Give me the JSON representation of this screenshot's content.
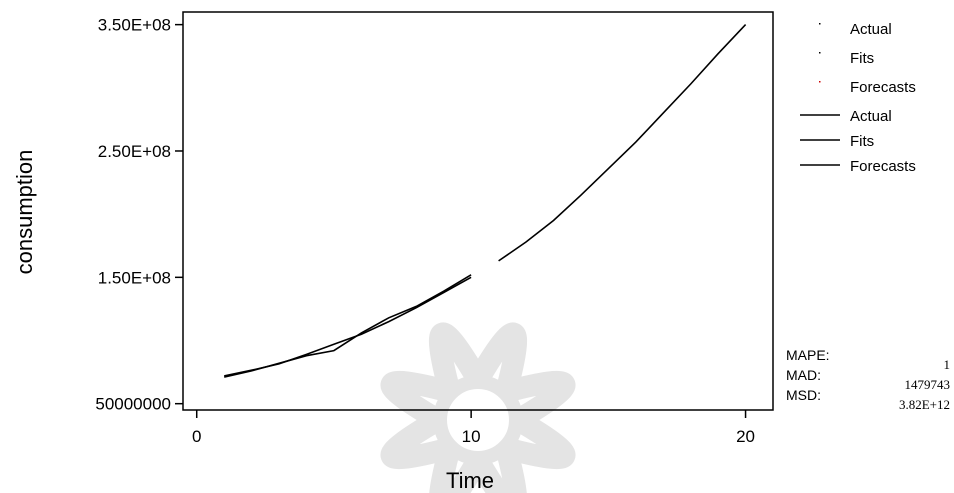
{
  "chart_data": {
    "type": "line",
    "xlabel": "Time",
    "ylabel": "consumption",
    "xlim": [
      -0.5,
      21
    ],
    "ylim": [
      45000000,
      360000000
    ],
    "x_ticks": [
      {
        "value": 0,
        "label": "0"
      },
      {
        "value": 10,
        "label": "10"
      },
      {
        "value": 20,
        "label": "20"
      }
    ],
    "y_ticks": [
      {
        "value": 50000000,
        "label": "50000000"
      },
      {
        "value": 150000000,
        "label": "1.50E+08"
      },
      {
        "value": 250000000,
        "label": "2.50E+08"
      },
      {
        "value": 350000000,
        "label": "3.50E+08"
      }
    ],
    "series": [
      {
        "name": "Actual",
        "color": "#000000",
        "x": [
          1,
          2,
          3,
          4,
          5,
          6,
          7,
          8,
          9,
          10
        ],
        "y": [
          71000000,
          76000000,
          82000000,
          88000000,
          92000000,
          106000000,
          118000000,
          127000000,
          139000000,
          152000000
        ]
      },
      {
        "name": "Fits",
        "color": "#000000",
        "x": [
          1,
          2,
          3,
          4,
          5,
          6,
          7,
          8,
          9,
          10
        ],
        "y": [
          72000000,
          76500000,
          81500000,
          89000000,
          97000000,
          105000000,
          115000000,
          126000000,
          138000000,
          150000000
        ]
      },
      {
        "name": "Forecasts",
        "color": "#000000",
        "x": [
          11,
          12,
          13,
          14,
          15,
          16,
          17,
          18,
          19,
          20
        ],
        "y": [
          163000000,
          178000000,
          195000000,
          215000000,
          236000000,
          257000000,
          280000000,
          303000000,
          327000000,
          350000000
        ]
      }
    ],
    "legend": {
      "placement": "top-right",
      "marker_entries": [
        {
          "label": "Actual",
          "color": "#000000"
        },
        {
          "label": "Fits",
          "color": "#000000"
        },
        {
          "label": "Forecasts",
          "color": "#cc0000"
        }
      ],
      "line_entries": [
        {
          "label": "Actual"
        },
        {
          "label": "Fits"
        },
        {
          "label": "Forecasts"
        }
      ]
    },
    "accuracy_measures": [
      {
        "label": "MAPE:",
        "value": "1"
      },
      {
        "label": "MAD:",
        "value": "1479743"
      },
      {
        "label": "MSD:",
        "value": "3.82E+12"
      }
    ]
  }
}
